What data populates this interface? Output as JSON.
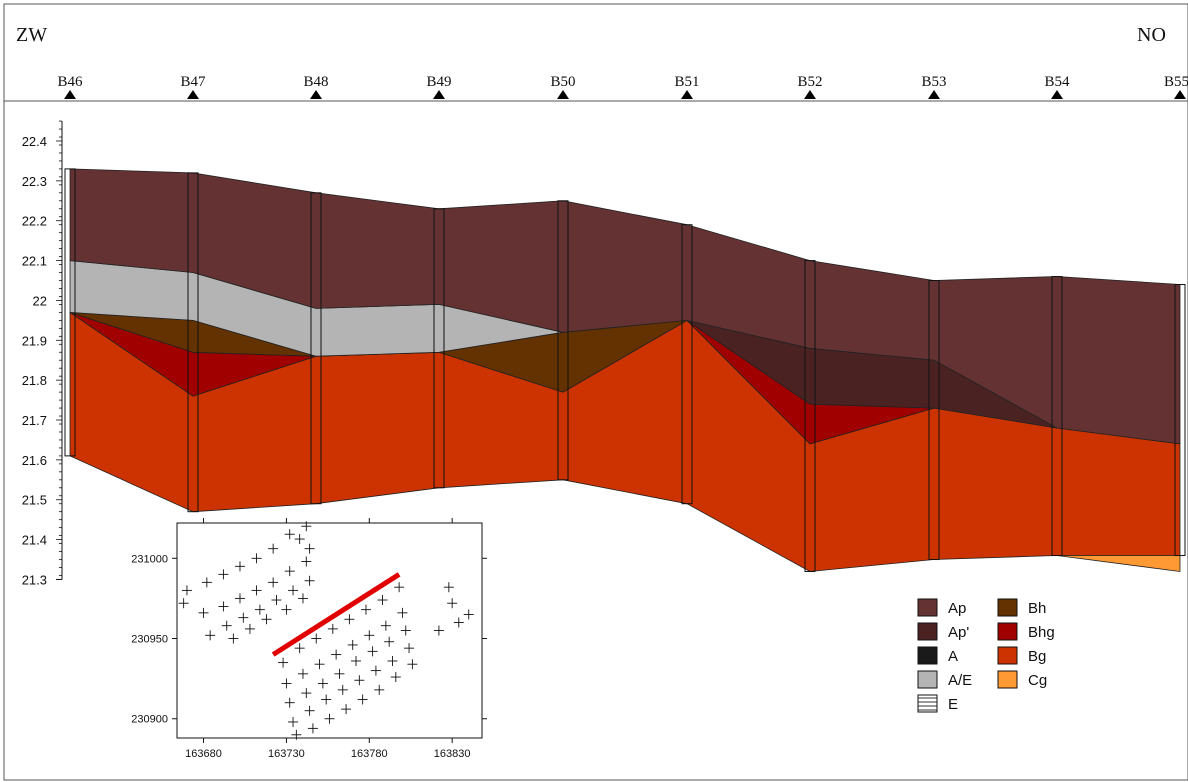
{
  "header": {
    "left_direction": "ZW",
    "right_direction": "NO"
  },
  "boreholes": [
    "B46",
    "B47",
    "B48",
    "B49",
    "B50",
    "B51",
    "B52",
    "B53",
    "B54",
    "B55"
  ],
  "elevation_axis": {
    "ticks": [
      "22.4",
      "22.3",
      "22.2",
      "22.1",
      "22",
      "21.9",
      "21.8",
      "21.7",
      "21.6",
      "21.5",
      "21.4",
      "21.3"
    ]
  },
  "profile": {
    "surface": [
      22.33,
      22.32,
      22.27,
      22.23,
      22.25,
      22.19,
      22.1,
      22.05,
      22.06,
      22.04
    ],
    "layers": {
      "Ap": [
        [
          22.33,
          22.1
        ],
        [
          22.32,
          22.07
        ],
        [
          22.27,
          21.98
        ],
        [
          22.23,
          21.99
        ],
        [
          22.25,
          21.92
        ],
        [
          22.19,
          21.95
        ],
        [
          22.1,
          21.88
        ],
        [
          22.05,
          21.85
        ],
        [
          22.06,
          21.68
        ],
        [
          22.04,
          21.64
        ]
      ],
      "Ap_prime": [
        null,
        null,
        null,
        null,
        null,
        [
          21.95,
          21.95
        ],
        [
          21.88,
          21.74
        ],
        [
          21.85,
          21.73
        ],
        [
          21.68,
          21.68
        ],
        null
      ],
      "AE": [
        [
          22.1,
          21.97
        ],
        [
          22.07,
          21.95
        ],
        [
          21.98,
          21.86
        ],
        [
          21.99,
          21.87
        ],
        [
          21.92,
          21.92
        ],
        null,
        null,
        null,
        null,
        null
      ],
      "Bh": [
        [
          21.97,
          21.97
        ],
        [
          21.95,
          21.87
        ],
        [
          21.86,
          21.86
        ],
        [
          21.87,
          21.87
        ],
        [
          21.92,
          21.77
        ],
        [
          21.95,
          21.95
        ],
        null,
        null,
        null,
        null
      ],
      "Bhg": [
        [
          21.97,
          21.97
        ],
        [
          21.87,
          21.76
        ],
        [
          21.86,
          21.86
        ],
        null,
        null,
        [
          21.95,
          21.95
        ],
        [
          21.74,
          21.64
        ],
        [
          21.73,
          21.73
        ],
        null,
        null
      ],
      "Bg": [
        [
          21.97,
          21.61
        ],
        [
          21.76,
          21.47
        ],
        [
          21.86,
          21.49
        ],
        [
          21.87,
          21.53
        ],
        [
          21.77,
          21.55
        ],
        [
          21.95,
          21.49
        ],
        [
          21.64,
          21.32
        ],
        [
          21.73,
          21.35
        ],
        [
          21.68,
          21.36
        ],
        [
          21.64,
          21.36
        ]
      ],
      "Cg": [
        null,
        null,
        null,
        null,
        null,
        null,
        null,
        null,
        [
          21.36,
          21.36
        ],
        [
          21.36,
          21.32
        ]
      ]
    }
  },
  "inset_map": {
    "x_ticks": [
      "163680",
      "163730",
      "163780",
      "163830"
    ],
    "y_ticks": [
      "231000",
      "230950",
      "230900"
    ],
    "x_range": [
      163664,
      163848
    ],
    "y_range": [
      230888,
      231022
    ],
    "line_start": [
      163722,
      230940
    ],
    "line_end": [
      163798,
      230990
    ],
    "points": [
      [
        163742,
        231020
      ],
      [
        163738,
        231012
      ],
      [
        163744,
        231006
      ],
      [
        163732,
        231015
      ],
      [
        163722,
        231006
      ],
      [
        163712,
        231000
      ],
      [
        163702,
        230995
      ],
      [
        163692,
        230990
      ],
      [
        163682,
        230985
      ],
      [
        163670,
        230980
      ],
      [
        163742,
        230998
      ],
      [
        163732,
        230992
      ],
      [
        163722,
        230985
      ],
      [
        163712,
        230980
      ],
      [
        163702,
        230975
      ],
      [
        163692,
        230970
      ],
      [
        163680,
        230966
      ],
      [
        163668,
        230972
      ],
      [
        163744,
        230986
      ],
      [
        163734,
        230980
      ],
      [
        163724,
        230974
      ],
      [
        163714,
        230968
      ],
      [
        163704,
        230963
      ],
      [
        163694,
        230958
      ],
      [
        163684,
        230952
      ],
      [
        163740,
        230975
      ],
      [
        163730,
        230968
      ],
      [
        163718,
        230962
      ],
      [
        163708,
        230956
      ],
      [
        163698,
        230950
      ],
      [
        163798,
        230982
      ],
      [
        163788,
        230974
      ],
      [
        163778,
        230968
      ],
      [
        163768,
        230962
      ],
      [
        163758,
        230956
      ],
      [
        163748,
        230950
      ],
      [
        163738,
        230944
      ],
      [
        163728,
        230935
      ],
      [
        163800,
        230966
      ],
      [
        163790,
        230958
      ],
      [
        163780,
        230952
      ],
      [
        163770,
        230946
      ],
      [
        163760,
        230940
      ],
      [
        163750,
        230934
      ],
      [
        163740,
        230928
      ],
      [
        163730,
        230922
      ],
      [
        163802,
        230955
      ],
      [
        163792,
        230948
      ],
      [
        163782,
        230942
      ],
      [
        163772,
        230936
      ],
      [
        163762,
        230928
      ],
      [
        163752,
        230922
      ],
      [
        163742,
        230916
      ],
      [
        163732,
        230910
      ],
      [
        163804,
        230944
      ],
      [
        163794,
        230936
      ],
      [
        163784,
        230930
      ],
      [
        163774,
        230924
      ],
      [
        163764,
        230918
      ],
      [
        163754,
        230912
      ],
      [
        163744,
        230905
      ],
      [
        163734,
        230898
      ],
      [
        163806,
        230934
      ],
      [
        163796,
        230926
      ],
      [
        163786,
        230918
      ],
      [
        163776,
        230912
      ],
      [
        163766,
        230906
      ],
      [
        163756,
        230900
      ],
      [
        163746,
        230894
      ],
      [
        163736,
        230890
      ],
      [
        163828,
        230982
      ],
      [
        163830,
        230972
      ],
      [
        163834,
        230960
      ],
      [
        163822,
        230955
      ],
      [
        163840,
        230965
      ]
    ]
  },
  "legend": [
    {
      "key": "Ap",
      "label": "Ap",
      "color": "#643232",
      "pattern": "solid"
    },
    {
      "key": "Bh",
      "label": "Bh",
      "color": "#643200",
      "pattern": "solid"
    },
    {
      "key": "Ap_prime",
      "label": "Ap'",
      "color": "#4a2222",
      "pattern": "solid"
    },
    {
      "key": "Bhg",
      "label": "Bhg",
      "color": "#a00000",
      "pattern": "solid"
    },
    {
      "key": "A",
      "label": "A",
      "color": "#1a1a1a",
      "pattern": "solid"
    },
    {
      "key": "Bg",
      "label": "Bg",
      "color": "#cc3300",
      "pattern": "solid"
    },
    {
      "key": "AE",
      "label": "A/E",
      "color": "#b4b4b4",
      "pattern": "solid"
    },
    {
      "key": "Cg",
      "label": "Cg",
      "color": "#ff9933",
      "pattern": "solid"
    },
    {
      "key": "E",
      "label": "E",
      "color": "#ffffff",
      "pattern": "hatch"
    }
  ]
}
